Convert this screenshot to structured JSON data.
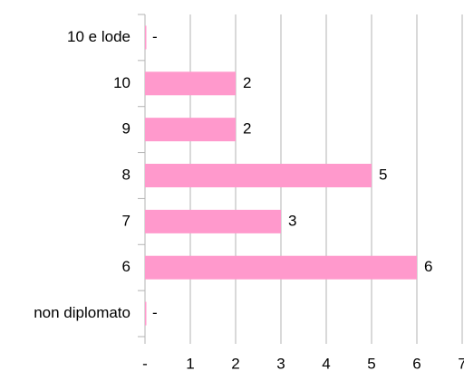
{
  "chart_data": {
    "type": "bar",
    "orientation": "horizontal",
    "categories": [
      "10 e lode",
      "10",
      "9",
      "8",
      "7",
      "6",
      "non diplomato"
    ],
    "values": [
      0,
      2,
      2,
      5,
      3,
      6,
      0
    ],
    "value_labels": [
      "-",
      "2",
      "2",
      "5",
      "3",
      "6",
      "-"
    ],
    "color": "#ff99cc",
    "xlim": [
      0,
      7
    ],
    "xticks": [
      {
        "value": 0,
        "label": "-"
      },
      1,
      2,
      3,
      4,
      5,
      6,
      7
    ],
    "grid": true
  }
}
